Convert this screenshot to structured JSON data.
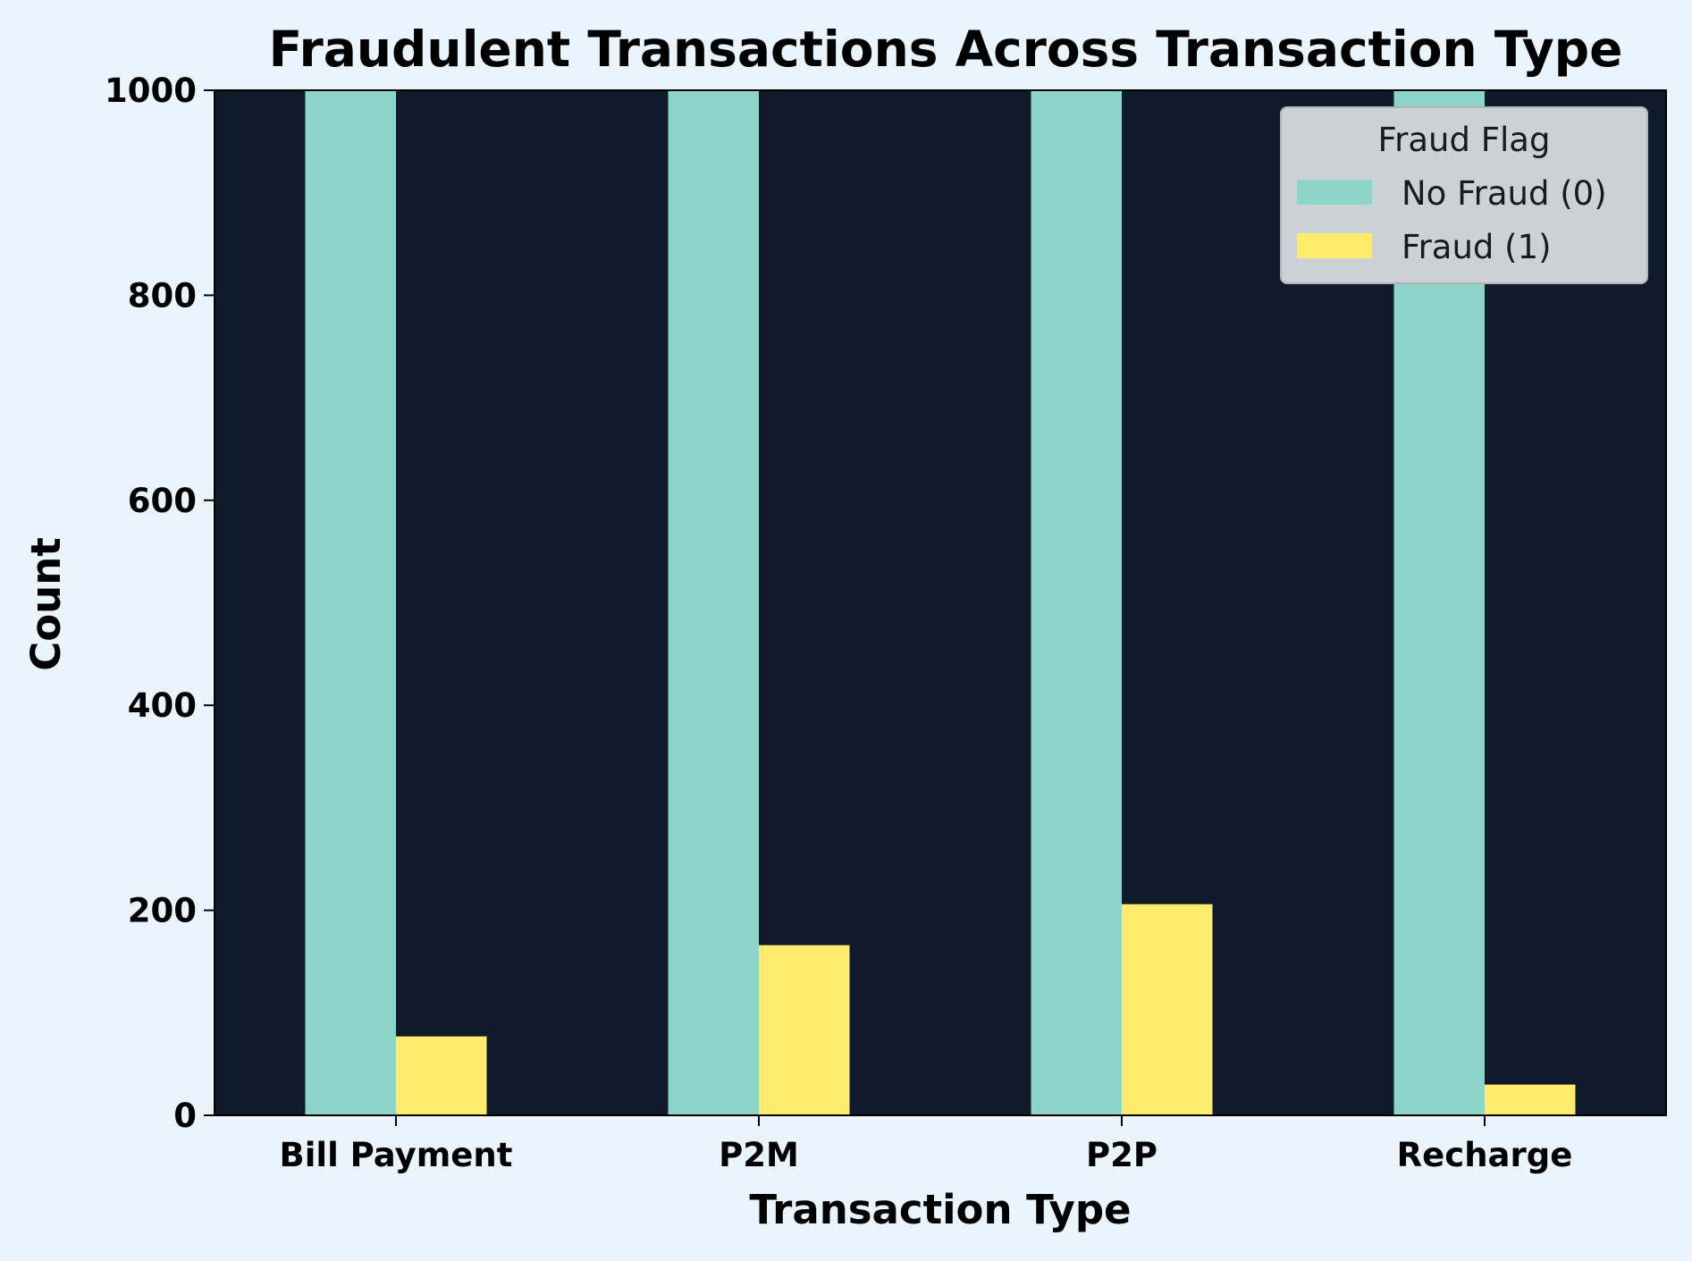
{
  "chart_data": {
    "type": "bar",
    "title": "Fraudulent Transactions Across Transaction Type",
    "xlabel": "Transaction Type",
    "ylabel": "Count",
    "categories": [
      "Bill Payment",
      "P2M",
      "P2P",
      "Recharge"
    ],
    "series": [
      {
        "name": "No Fraud (0)",
        "color": "#8fd4c8",
        "values": [
          1000,
          1000,
          1000,
          1000
        ]
      },
      {
        "name": "Fraud (1)",
        "color": "#ffeb6e",
        "values": [
          77,
          166,
          206,
          30
        ]
      }
    ],
    "ylim": [
      0,
      1000
    ],
    "yticks": [
      "0",
      "200",
      "400",
      "600",
      "800",
      "1000"
    ],
    "grid": false,
    "legend": {
      "title": "Fraud Flag",
      "position": "top-right"
    },
    "colors": {
      "page_background": "#eaf4fc",
      "plot_background": "#0f1b2a",
      "legend_background": "#ccd1d5"
    }
  }
}
